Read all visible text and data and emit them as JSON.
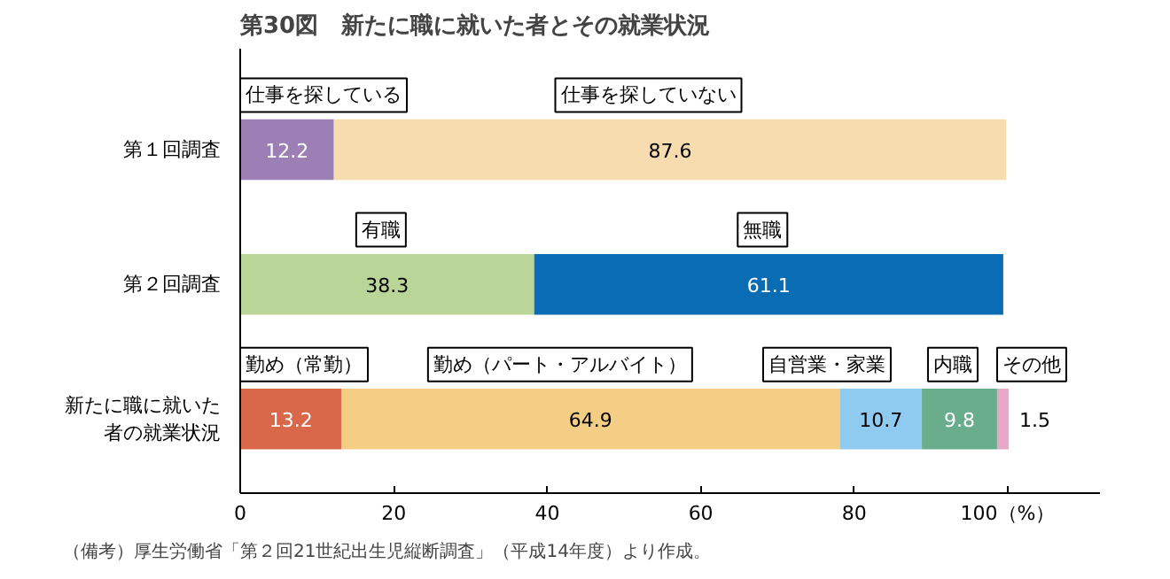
{
  "chart_data": {
    "type": "bar",
    "orientation": "horizontal",
    "stacked": true,
    "title": "第30図　新たに職に就いた者とその就業状況",
    "categories": [
      "第１回調査",
      "第２回調査",
      "新たに職に就いた者の就業状況"
    ],
    "series": [
      {
        "name": "仕事を探している",
        "color": "#9c7fb4",
        "values": [
          12.2,
          null,
          null
        ]
      },
      {
        "name": "仕事を探していない",
        "color": "#f7dcb0",
        "values": [
          87.6,
          null,
          null
        ]
      },
      {
        "name": "有職",
        "color": "#b9d597",
        "values": [
          null,
          38.3,
          null
        ]
      },
      {
        "name": "無職",
        "color": "#0a6db3",
        "values": [
          null,
          61.1,
          null
        ]
      },
      {
        "name": "勤め（常勤）",
        "color": "#d9674a",
        "values": [
          null,
          null,
          13.2
        ]
      },
      {
        "name": "勤め（パート・アルバイト）",
        "color": "#f5ce85",
        "values": [
          null,
          null,
          64.9
        ]
      },
      {
        "name": "自営業・家業",
        "color": "#8fcbf0",
        "values": [
          null,
          null,
          10.7
        ]
      },
      {
        "name": "内職",
        "color": "#6aad8c",
        "values": [
          null,
          null,
          9.8
        ]
      },
      {
        "name": "その他",
        "color": "#e8a8c8",
        "values": [
          null,
          null,
          1.5
        ]
      }
    ],
    "xlim": [
      0,
      112
    ],
    "xticks": [
      0,
      20,
      40,
      60,
      80,
      {
        "value": 100,
        "label": "100（%）"
      }
    ],
    "data_labels": true,
    "grid": false,
    "annotations": [
      "（備考）厚生労働省「第２回21世紀出生児縦断調査」（平成14年度）より作成。"
    ]
  }
}
